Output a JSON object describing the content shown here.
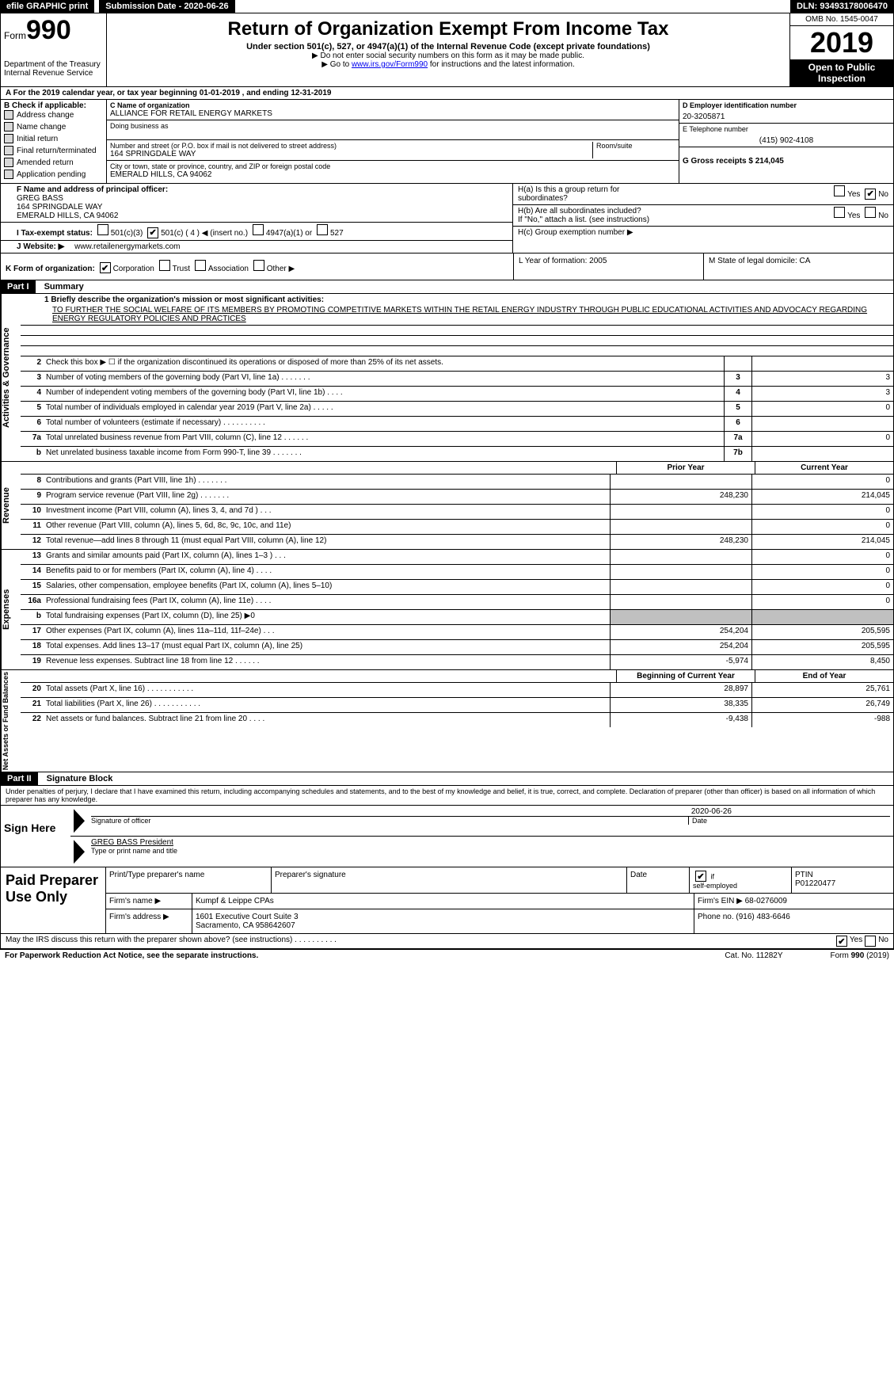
{
  "top": {
    "efile": "efile GRAPHIC print",
    "submission": "Submission Date - 2020-06-26",
    "dln": "DLN: 93493178006470"
  },
  "header": {
    "form_small": "Form",
    "form_big": "990",
    "dept1": "Department of the Treasury",
    "dept2": "Internal Revenue Service",
    "title": "Return of Organization Exempt From Income Tax",
    "sub1": "Under section 501(c), 527, or 4947(a)(1) of the Internal Revenue Code (except private foundations)",
    "sub2": "▶ Do not enter social security numbers on this form as it may be made public.",
    "sub3_pre": "▶ Go to ",
    "sub3_link": "www.irs.gov/Form990",
    "sub3_post": " for instructions and the latest information.",
    "omb": "OMB No. 1545-0047",
    "year": "2019",
    "inspect1": "Open to Public",
    "inspect2": "Inspection"
  },
  "line_a": "A   For the 2019 calendar year, or tax year beginning 01-01-2019           , and ending 12-31-2019",
  "col_b": {
    "label": "B  Check if applicable:",
    "items": [
      "Address change",
      "Name change",
      "Initial return",
      "Final return/terminated",
      "Amended return",
      "Application pending"
    ]
  },
  "col_c": {
    "c_label": "C Name of organization",
    "org": "ALLIANCE FOR RETAIL ENERGY MARKETS",
    "dba_label": "Doing business as",
    "dba": "",
    "street_label": "Number and street (or P.O. box if mail is not delivered to street address)",
    "room_label": "Room/suite",
    "street": "164 SPRINGDALE WAY",
    "city_label": "City or town, state or province, country, and ZIP or foreign postal code",
    "city": "EMERALD HILLS, CA  94062",
    "f_label": "F  Name and address of principal officer:",
    "f_name": "GREG BASS",
    "f_addr1": "164 SPRINGDALE WAY",
    "f_addr2": "EMERALD HILLS, CA  94062"
  },
  "col_de": {
    "d_label": "D Employer identification number",
    "d_val": "20-3205871",
    "e_label": "E Telephone number",
    "e_val": "(415) 902-4108",
    "g_label": "G Gross receipts $ 214,045"
  },
  "h": {
    "ha_label": "H(a)   Is this a group return for",
    "ha_label2": "subordinates?",
    "hb_label": "H(b)   Are all subordinates included?",
    "hb_note": "If \"No,\" attach a list. (see instructions)",
    "hc_label": "H(c)   Group exemption number ▶",
    "yes": "Yes",
    "no": "No"
  },
  "i_row": "I      Tax-exempt status:",
  "i_opts": [
    "501(c)(3)",
    "501(c) ( 4 ) ◀ (insert no.)",
    "4947(a)(1) or",
    "527"
  ],
  "j_row": "J    Website: ▶",
  "j_val": "www.retailenergymarkets.com",
  "k_row": "K Form of organization:",
  "k_opts": [
    "Corporation",
    "Trust",
    "Association",
    "Other ▶"
  ],
  "l_label": "L Year of formation: 2005",
  "m_label": "M State of legal domicile: CA",
  "part1": "Part I",
  "part1_title": "Summary",
  "mission_label": "1   Briefly describe the organization's mission or most significant activities:",
  "mission": "TO FURTHER THE SOCIAL WELFARE OF ITS MEMBERS BY PROMOTING COMPETITIVE MARKETS WITHIN THE RETAIL ENERGY INDUSTRY THROUGH PUBLIC EDUCATIONAL ACTIVITIES AND ADVOCACY REGARDING ENERGY REGULATORY POLICIES AND PRACTICES",
  "sections": {
    "activities": {
      "label": "Activities & Governance",
      "rows": [
        {
          "n": "2",
          "d": "Check this box ▶ ☐ if the organization discontinued its operations or disposed of more than 25% of its net assets.",
          "b": "",
          "v": ""
        },
        {
          "n": "3",
          "d": "Number of voting members of the governing body (Part VI, line 1a)   .     .     .     .     .     .     .",
          "b": "3",
          "v": "3"
        },
        {
          "n": "4",
          "d": "Number of independent voting members of the governing body (Part VI, line 1b)   .     .     .     .",
          "b": "4",
          "v": "3"
        },
        {
          "n": "5",
          "d": "Total number of individuals employed in calendar year 2019 (Part V, line 2a)   .     .     .     .     .",
          "b": "5",
          "v": "0"
        },
        {
          "n": "6",
          "d": "Total number of volunteers (estimate if necessary)   .     .     .     .     .     .     .     .     .     .",
          "b": "6",
          "v": ""
        },
        {
          "n": "7a",
          "d": "Total unrelated business revenue from Part VIII, column (C), line 12   .     .     .     .     .     .",
          "b": "7a",
          "v": "0"
        },
        {
          "n": "b",
          "d": "Net unrelated business taxable income from Form 990-T, line 39   .     .     .     .     .     .     .",
          "b": "7b",
          "v": ""
        }
      ]
    },
    "revenue": {
      "label": "Revenue",
      "prior": "Prior Year",
      "current": "Current Year",
      "rows": [
        {
          "n": "8",
          "d": "Contributions and grants (Part VIII, line 1h)   .     .     .     .     .     .     .",
          "p": "",
          "c": "0"
        },
        {
          "n": "9",
          "d": "Program service revenue (Part VIII, line 2g)   .     .     .     .     .     .     .",
          "p": "248,230",
          "c": "214,045"
        },
        {
          "n": "10",
          "d": "Investment income (Part VIII, column (A), lines 3, 4, and 7d )   .     .     .",
          "p": "",
          "c": "0"
        },
        {
          "n": "11",
          "d": "Other revenue (Part VIII, column (A), lines 5, 6d, 8c, 9c, 10c, and 11e)",
          "p": "",
          "c": "0"
        },
        {
          "n": "12",
          "d": "Total revenue—add lines 8 through 11 (must equal Part VIII, column (A), line 12)",
          "p": "248,230",
          "c": "214,045"
        }
      ]
    },
    "expenses": {
      "label": "Expenses",
      "rows": [
        {
          "n": "13",
          "d": "Grants and similar amounts paid (Part IX, column (A), lines 1–3 )   .     .     .",
          "p": "",
          "c": "0"
        },
        {
          "n": "14",
          "d": "Benefits paid to or for members (Part IX, column (A), line 4)   .     .     .     .",
          "p": "",
          "c": "0"
        },
        {
          "n": "15",
          "d": "Salaries, other compensation, employee benefits (Part IX, column (A), lines 5–10)",
          "p": "",
          "c": "0"
        },
        {
          "n": "16a",
          "d": "Professional fundraising fees (Part IX, column (A), line 11e)   .     .     .     .",
          "p": "",
          "c": "0"
        },
        {
          "n": "b",
          "d": "Total fundraising expenses (Part IX, column (D), line 25) ▶0",
          "p": "grey",
          "c": "grey"
        },
        {
          "n": "17",
          "d": "Other expenses (Part IX, column (A), lines 11a–11d, 11f–24e)   .     .     .",
          "p": "254,204",
          "c": "205,595"
        },
        {
          "n": "18",
          "d": "Total expenses. Add lines 13–17 (must equal Part IX, column (A), line 25)",
          "p": "254,204",
          "c": "205,595"
        },
        {
          "n": "19",
          "d": "Revenue less expenses. Subtract line 18 from line 12   .     .     .     .     .     .",
          "p": "-5,974",
          "c": "8,450"
        }
      ]
    },
    "nets": {
      "label": "Net Assets or Fund Balances",
      "prior": "Beginning of Current Year",
      "current": "End of Year",
      "rows": [
        {
          "n": "20",
          "d": "Total assets (Part X, line 16)   .     .     .     .     .     .     .     .     .     .     .",
          "p": "28,897",
          "c": "25,761"
        },
        {
          "n": "21",
          "d": "Total liabilities (Part X, line 26)   .     .     .     .     .     .     .     .     .     .     .",
          "p": "38,335",
          "c": "26,749"
        },
        {
          "n": "22",
          "d": "Net assets or fund balances. Subtract line 21 from line 20   .     .     .     .",
          "p": "-9,438",
          "c": "-988"
        }
      ]
    }
  },
  "part2": "Part II",
  "part2_title": "Signature Block",
  "penalties": "Under penalties of perjury, I declare that I have examined this return, including accompanying schedules and statements, and to the best of my knowledge and belief, it is true, correct, and complete. Declaration of preparer (other than officer) is based on all information of which preparer has any knowledge.",
  "sign": {
    "here": "Sign Here",
    "sig_label": "Signature of officer",
    "date_label": "Date",
    "date": "2020-06-26",
    "name": "GREG BASS President",
    "name_label": "Type or print name and title"
  },
  "preparer": {
    "label": "Paid Preparer Use Only",
    "print_label": "Print/Type preparer's name",
    "sig_label": "Preparer's signature",
    "date_label": "Date",
    "check_label": "Check ☑ if self-employed",
    "ptin_label": "PTIN",
    "ptin": "P01220477",
    "firm_label": "Firm's name    ▶",
    "firm": "Kumpf & Leippe CPAs",
    "ein_label": "Firm's EIN ▶",
    "ein": "68-0276009",
    "addr_label": "Firm's address ▶",
    "addr1": "1601 Executive Court Suite 3",
    "addr2": "Sacramento, CA  958642607",
    "phone_label": "Phone no.",
    "phone": "(916) 483-6646"
  },
  "discuss": "May the IRS discuss this return with the preparer shown above? (see instructions)   .     .     .     .     .     .     .     .     .     .",
  "footer": {
    "left": "For Paperwork Reduction Act Notice, see the separate instructions.",
    "mid": "Cat. No. 11282Y",
    "right": "Form 990 (2019)"
  }
}
